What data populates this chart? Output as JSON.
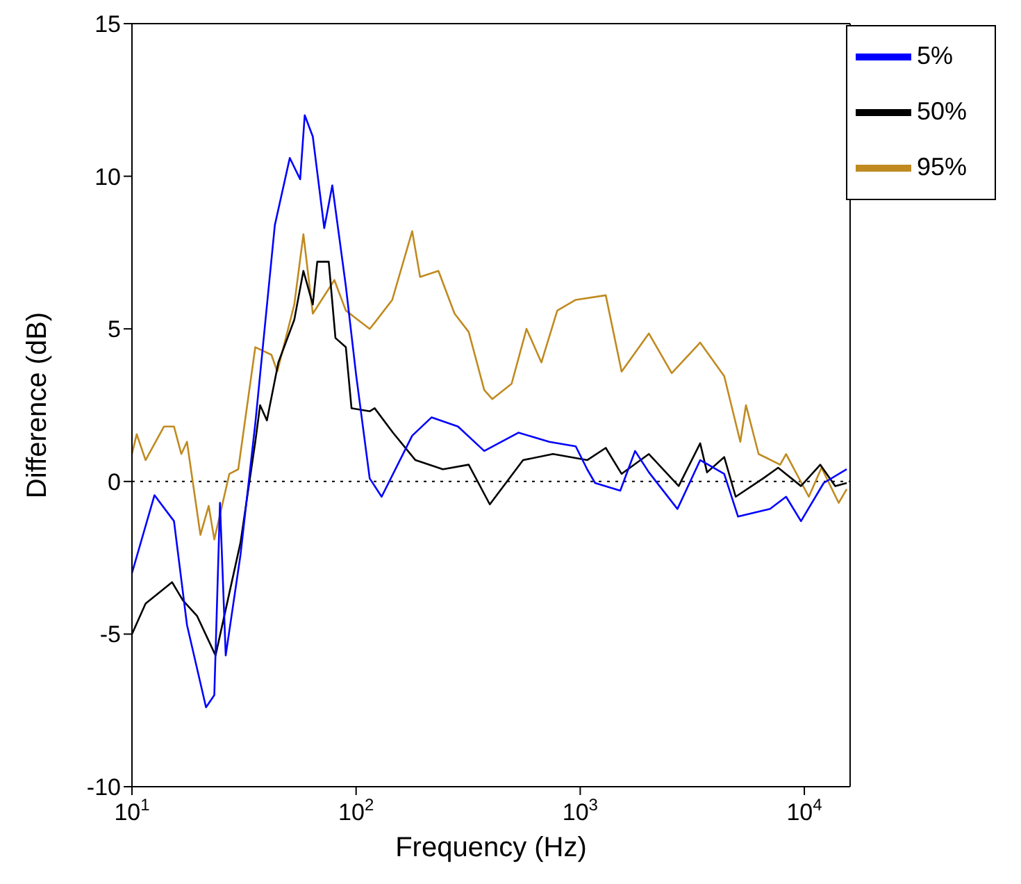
{
  "chart_data": {
    "type": "line",
    "xlabel": "Frequency (Hz)",
    "ylabel": "Difference (dB)",
    "log": "x",
    "xlim": [
      10,
      16000
    ],
    "xticks": [
      {
        "value": 10,
        "label": "10$^{1}$"
      },
      {
        "value": 100,
        "label": "10$^{2}$"
      },
      {
        "value": 1000,
        "label": "10$^{3}$"
      },
      {
        "value": 10000,
        "label": "10$^{4}$"
      }
    ],
    "ylim": [
      -10,
      15
    ],
    "yticks": [
      -10,
      -5,
      0,
      5,
      10,
      15
    ],
    "grid": false,
    "legend": "top right",
    "marker": "none",
    "line_style": "solid",
    "ref_lines": [
      {
        "axis": "y",
        "value": 0,
        "color": "#000000",
        "line_style": "dotted"
      }
    ],
    "series": [
      {
        "name": "95%",
        "color": "#c08a20",
        "x": [
          10,
          10.5,
          11.5,
          13.9,
          15.4,
          16.6,
          17.6,
          20.2,
          22,
          23.3,
          27.2,
          29.8,
          35.5,
          41.9,
          44.5,
          53,
          58.2,
          64.1,
          80,
          90,
          115,
          121,
          145,
          178,
          193,
          233,
          275,
          318,
          373,
          405,
          494,
          576,
          671,
          790,
          955,
          1300,
          1530,
          2025,
          2560,
          3430,
          4390,
          5180,
          5490,
          6250,
          7800,
          8290,
          10470,
          11930,
          14230,
          15450
        ],
        "values": [
          0.9,
          1.55,
          0.7,
          1.8,
          1.8,
          0.9,
          1.3,
          -1.75,
          -0.8,
          -1.9,
          0.25,
          0.4,
          4.4,
          4.15,
          3.6,
          5.8,
          8.1,
          5.5,
          6.6,
          5.6,
          5,
          5.2,
          5.95,
          8.2,
          6.7,
          6.9,
          5.5,
          4.9,
          3,
          2.7,
          3.2,
          5,
          3.9,
          5.6,
          5.95,
          6.1,
          3.6,
          4.85,
          3.55,
          4.55,
          3.45,
          1.3,
          2.5,
          0.9,
          0.55,
          0.9,
          -0.5,
          0.45,
          -0.7,
          -0.25
        ]
      },
      {
        "name": "50%",
        "color": "#000000",
        "x": [
          10,
          11.5,
          15.1,
          16.9,
          19.5,
          23.6,
          30.5,
          35.5,
          37.3,
          40,
          45,
          53,
          58.2,
          64.1,
          67.1,
          75.5,
          80.9,
          90,
          95.4,
          115,
          121,
          146,
          184,
          244,
          318,
          395,
          556,
          756,
          1074,
          1300,
          1530,
          2025,
          2750,
          3430,
          3680,
          4390,
          4940,
          6550,
          7640,
          9660,
          11780,
          13740,
          15450
        ],
        "values": [
          -5,
          -4,
          -3.3,
          -3.9,
          -4.4,
          -5.7,
          -2,
          1.3,
          2.5,
          2,
          3.9,
          5.3,
          6.9,
          5.8,
          7.2,
          7.2,
          4.7,
          4.4,
          2.4,
          2.3,
          2.4,
          1.6,
          0.7,
          0.4,
          0.55,
          -0.75,
          0.7,
          0.9,
          0.7,
          1.1,
          0.25,
          0.9,
          -0.15,
          1.25,
          0.3,
          0.8,
          -0.5,
          0.1,
          0.45,
          -0.15,
          0.55,
          -0.15,
          -0.05
        ]
      },
      {
        "name": "5%",
        "color": "#0000ff",
        "x": [
          10,
          12.6,
          15.4,
          17.6,
          21.4,
          23.3,
          24.7,
          26.2,
          30.5,
          35.5,
          43.4,
          50.6,
          56.3,
          59,
          64.1,
          72.1,
          78.3,
          90,
          100,
          115,
          130,
          178,
          217,
          285,
          373,
          530,
          728,
          955,
          1074,
          1165,
          1509,
          1757,
          2025,
          2715,
          3430,
          4390,
          5060,
          7030,
          8290,
          9660,
          12200,
          15450
        ],
        "values": [
          -3,
          -0.45,
          -1.3,
          -4.7,
          -7.4,
          -7,
          -0.7,
          -5.7,
          -2.4,
          1.9,
          8.4,
          10.6,
          9.9,
          12,
          11.3,
          8.3,
          9.7,
          6.4,
          3.5,
          0.1,
          -0.5,
          1.5,
          2.1,
          1.8,
          1,
          1.6,
          1.3,
          1.15,
          0.4,
          -0.05,
          -0.3,
          1,
          0.3,
          -0.9,
          0.7,
          0.25,
          -1.15,
          -0.9,
          -0.5,
          -1.3,
          -0.05,
          0.4
        ]
      }
    ]
  }
}
